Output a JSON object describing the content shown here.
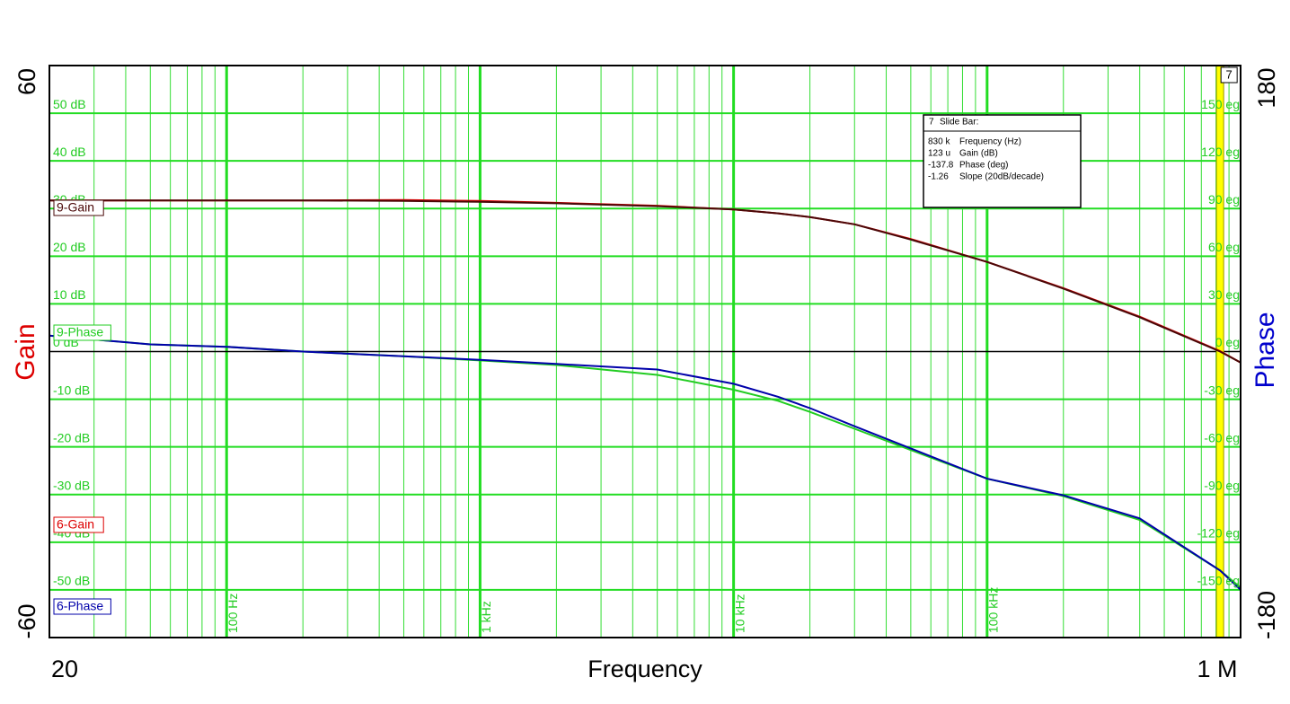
{
  "chart_data": {
    "type": "line",
    "x_label": "Frequency",
    "y_label": "Gain",
    "y2_label": "Phase",
    "xscale": "log",
    "grid": true,
    "xlim": [
      20,
      1000000
    ],
    "xticks": [
      20,
      {
        "value": 100,
        "label": "100 Hz"
      },
      {
        "value": 1000,
        "label": "1 kHz"
      },
      {
        "value": 10000,
        "label": "10 kHz"
      },
      {
        "value": 100000,
        "label": "100 kHz"
      },
      {
        "value": 1000000,
        "label": "1 M"
      }
    ],
    "ylim": [
      -60,
      60
    ],
    "yticks": [
      -60,
      {
        "value": -50,
        "label": "-50 dB"
      },
      {
        "value": -40,
        "label": "-40 dB"
      },
      {
        "value": -30,
        "label": "-30 dB"
      },
      {
        "value": -20,
        "label": "-20 dB"
      },
      {
        "value": -10,
        "label": "-10 dB"
      },
      {
        "value": 0,
        "label": "0 dB"
      },
      {
        "value": 10,
        "label": "10 dB"
      },
      {
        "value": 20,
        "label": "20 dB"
      },
      {
        "value": 30,
        "label": "30 dB"
      },
      {
        "value": 40,
        "label": "40 dB"
      },
      {
        "value": 50,
        "label": "50 dB"
      },
      60
    ],
    "y2lim": [
      -180,
      180
    ],
    "y2ticks": [
      -180,
      {
        "value": -150,
        "label": "-150 eg"
      },
      {
        "value": -120,
        "label": "-120 eg"
      },
      {
        "value": -90,
        "label": "-90 eg"
      },
      {
        "value": -60,
        "label": "-60 eg"
      },
      {
        "value": -30,
        "label": "-30 eg"
      },
      {
        "value": 0,
        "label": "0 eg"
      },
      {
        "value": 30,
        "label": "30 eg"
      },
      {
        "value": 60,
        "label": "60 eg"
      },
      {
        "value": 90,
        "label": "90 eg"
      },
      {
        "value": 120,
        "label": "120 eg"
      },
      {
        "value": 150,
        "label": "150 eg"
      },
      180
    ],
    "x": [
      20,
      50,
      100,
      200,
      500,
      1000,
      2000,
      5000,
      10000,
      15000,
      20000,
      30000,
      50000,
      100000,
      200000,
      400000,
      830000,
      1000000
    ],
    "series": [
      {
        "name": "9-Gain",
        "color": "#4a0808",
        "axis": "y",
        "values": [
          31.7,
          31.7,
          31.7,
          31.7,
          31.6,
          31.4,
          31.1,
          30.5,
          29.8,
          29.0,
          28.2,
          26.7,
          23.5,
          18.8,
          13.2,
          7.2,
          0,
          -2.3
        ]
      },
      {
        "name": "9-Phase",
        "color": "#22cc22",
        "axis": "y2",
        "values": [
          10,
          4.5,
          3,
          0,
          -3,
          -5.6,
          -8.5,
          -14.7,
          -24,
          -31,
          -38,
          -48.6,
          -62,
          -80,
          -91,
          -106,
          -137.8,
          -148.6
        ]
      },
      {
        "name": "6-Gain",
        "color": "#dd0000",
        "axis": "y",
        "values": [
          31.7,
          31.7,
          31.7,
          31.7,
          31.8,
          31.6,
          31.2,
          30.6,
          29.8,
          29.0,
          28.2,
          26.7,
          23.6,
          18.8,
          13.3,
          7.3,
          0.1,
          -2.3
        ]
      },
      {
        "name": "6-Phase",
        "color": "#0000aa",
        "axis": "y2",
        "values": [
          10,
          4.5,
          3,
          0,
          -3,
          -5.2,
          -7.8,
          -11.3,
          -20.3,
          -28.5,
          -35.6,
          -47,
          -61,
          -80,
          -90.5,
          -105,
          -137.8,
          -150
        ]
      }
    ],
    "cursor": {
      "label": "7",
      "title": "Slide Bar:",
      "x": 830000,
      "readouts": [
        {
          "value": "830 k",
          "name": "Frequency (Hz)"
        },
        {
          "value": "123 u",
          "name": "Gain (dB)"
        },
        {
          "value": "-137.8",
          "name": "Phase (deg)"
        },
        {
          "value": "-1.26",
          "name": "Slope (20dB/decade)"
        }
      ]
    }
  }
}
